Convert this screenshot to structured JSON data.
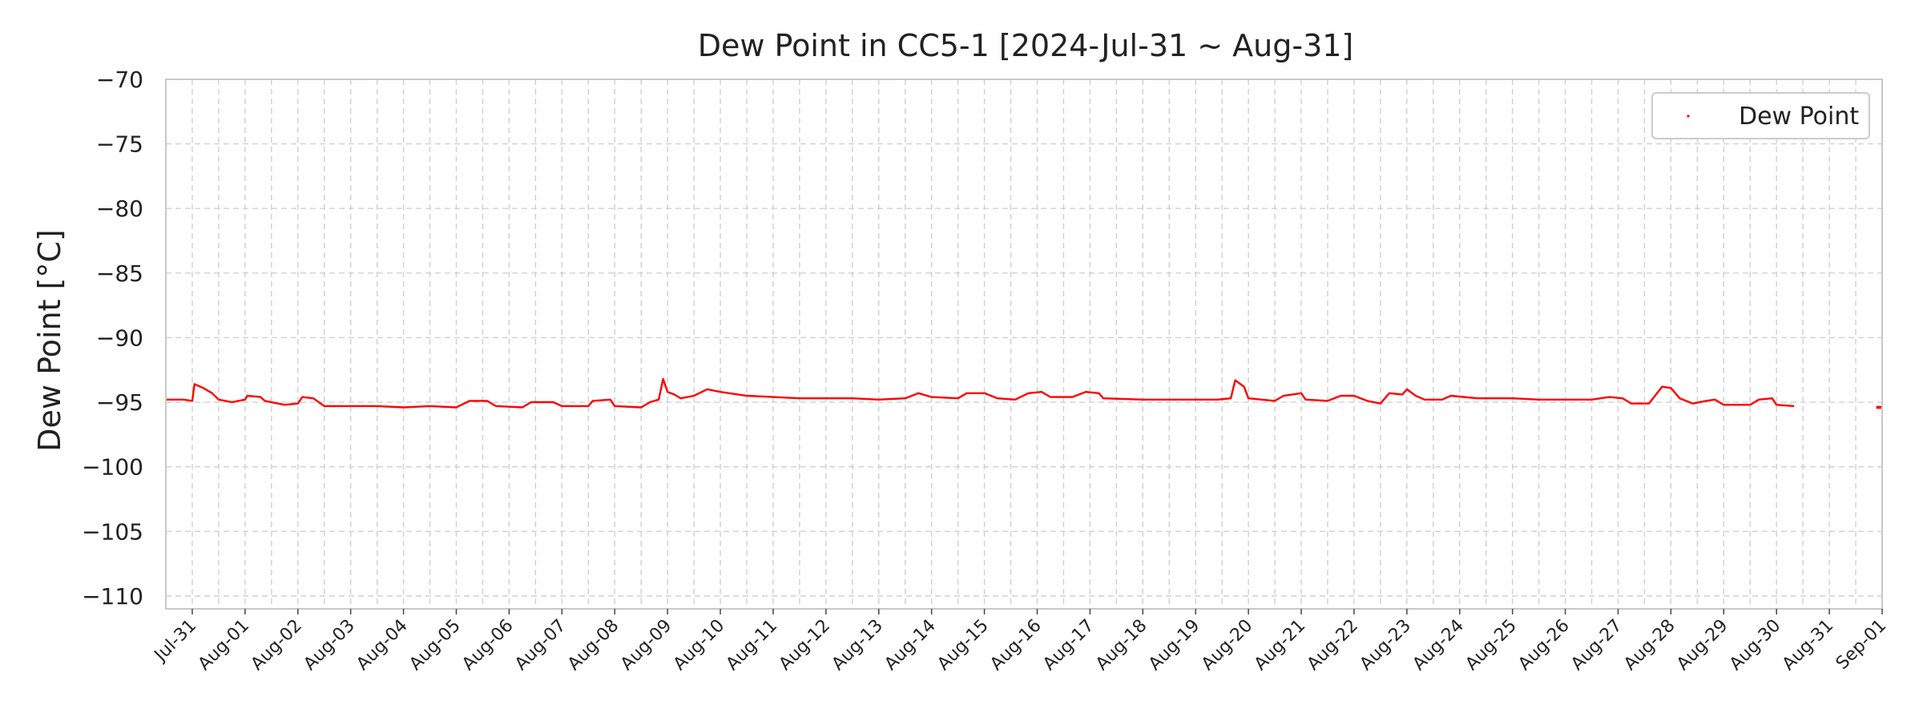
{
  "chart_data": {
    "type": "line",
    "title": "Dew Point in CC5-1 [2024-Jul-31 ~ Aug-31]",
    "xlabel": "",
    "ylabel": "Dew Point [°C]",
    "ylim": [
      -111,
      -70
    ],
    "yticks": [
      -70,
      -75,
      -80,
      -85,
      -90,
      -95,
      -100,
      -105,
      -110
    ],
    "xlim": [
      "2024-07-30T12:00",
      "2024-09-01T00:00"
    ],
    "xticks": [
      "2024-07-31",
      "2024-08-01",
      "2024-08-02",
      "2024-08-03",
      "2024-08-04",
      "2024-08-05",
      "2024-08-06",
      "2024-08-07",
      "2024-08-08",
      "2024-08-09",
      "2024-08-10",
      "2024-08-11",
      "2024-08-12",
      "2024-08-13",
      "2024-08-14",
      "2024-08-15",
      "2024-08-16",
      "2024-08-17",
      "2024-08-18",
      "2024-08-19",
      "2024-08-20",
      "2024-08-21",
      "2024-08-22",
      "2024-08-23",
      "2024-08-24",
      "2024-08-25",
      "2024-08-26",
      "2024-08-27",
      "2024-08-28",
      "2024-08-29",
      "2024-08-30",
      "2024-08-31",
      "2024-09-01"
    ],
    "xtick_labels": [
      "Jul-31",
      "Aug-01",
      "Aug-02",
      "Aug-03",
      "Aug-04",
      "Aug-05",
      "Aug-06",
      "Aug-07",
      "Aug-08",
      "Aug-09",
      "Aug-10",
      "Aug-11",
      "Aug-12",
      "Aug-13",
      "Aug-14",
      "Aug-15",
      "Aug-16",
      "Aug-17",
      "Aug-18",
      "Aug-19",
      "Aug-20",
      "Aug-21",
      "Aug-22",
      "Aug-23",
      "Aug-24",
      "Aug-25",
      "Aug-26",
      "Aug-27",
      "Aug-28",
      "Aug-29",
      "Aug-30",
      "Aug-31",
      "Sep-01"
    ],
    "grid": true,
    "legend": "top-right",
    "series": [
      {
        "name": "Dew Point",
        "color": "#ff0000",
        "points": [
          [
            "2024-07-30T12:00",
            -94.8
          ],
          [
            "2024-07-30T20:00",
            -94.8
          ],
          [
            "2024-07-31T00:00",
            -94.9
          ],
          [
            "2024-07-31T01:00",
            -93.6
          ],
          [
            "2024-07-31T05:00",
            -93.9
          ],
          [
            "2024-07-31T09:00",
            -94.3
          ],
          [
            "2024-07-31T12:00",
            -94.8
          ],
          [
            "2024-07-31T18:00",
            -95.0
          ],
          [
            "2024-08-01T00:00",
            -94.8
          ],
          [
            "2024-08-01T01:00",
            -94.5
          ],
          [
            "2024-08-01T07:00",
            -94.6
          ],
          [
            "2024-08-01T09:00",
            -94.9
          ],
          [
            "2024-08-01T18:00",
            -95.2
          ],
          [
            "2024-08-02T00:00",
            -95.1
          ],
          [
            "2024-08-02T02:00",
            -94.6
          ],
          [
            "2024-08-02T07:00",
            -94.7
          ],
          [
            "2024-08-02T12:00",
            -95.3
          ],
          [
            "2024-08-03T00:00",
            -95.3
          ],
          [
            "2024-08-03T12:00",
            -95.3
          ],
          [
            "2024-08-04T00:00",
            -95.4
          ],
          [
            "2024-08-04T12:00",
            -95.3
          ],
          [
            "2024-08-05T00:00",
            -95.4
          ],
          [
            "2024-08-05T06:00",
            -94.9
          ],
          [
            "2024-08-05T14:00",
            -94.9
          ],
          [
            "2024-08-05T18:00",
            -95.3
          ],
          [
            "2024-08-06T06:00",
            -95.4
          ],
          [
            "2024-08-06T10:00",
            -95.0
          ],
          [
            "2024-08-06T20:00",
            -95.0
          ],
          [
            "2024-08-07T00:00",
            -95.3
          ],
          [
            "2024-08-07T12:00",
            -95.3
          ],
          [
            "2024-08-07T14:00",
            -94.9
          ],
          [
            "2024-08-07T22:00",
            -94.8
          ],
          [
            "2024-08-08T00:00",
            -95.3
          ],
          [
            "2024-08-08T12:00",
            -95.4
          ],
          [
            "2024-08-08T16:00",
            -95.0
          ],
          [
            "2024-08-08T20:00",
            -94.8
          ],
          [
            "2024-08-08T22:00",
            -93.2
          ],
          [
            "2024-08-09T00:00",
            -94.2
          ],
          [
            "2024-08-09T03:00",
            -94.4
          ],
          [
            "2024-08-09T06:00",
            -94.7
          ],
          [
            "2024-08-09T12:00",
            -94.5
          ],
          [
            "2024-08-09T18:00",
            -94.0
          ],
          [
            "2024-08-10T00:00",
            -94.2
          ],
          [
            "2024-08-10T12:00",
            -94.5
          ],
          [
            "2024-08-11T00:00",
            -94.6
          ],
          [
            "2024-08-11T12:00",
            -94.7
          ],
          [
            "2024-08-12T00:00",
            -94.7
          ],
          [
            "2024-08-12T12:00",
            -94.7
          ],
          [
            "2024-08-13T00:00",
            -94.8
          ],
          [
            "2024-08-13T12:00",
            -94.7
          ],
          [
            "2024-08-13T18:00",
            -94.3
          ],
          [
            "2024-08-14T00:00",
            -94.6
          ],
          [
            "2024-08-14T12:00",
            -94.7
          ],
          [
            "2024-08-14T16:00",
            -94.3
          ],
          [
            "2024-08-15T00:00",
            -94.3
          ],
          [
            "2024-08-15T06:00",
            -94.7
          ],
          [
            "2024-08-15T14:00",
            -94.8
          ],
          [
            "2024-08-15T20:00",
            -94.3
          ],
          [
            "2024-08-16T02:00",
            -94.2
          ],
          [
            "2024-08-16T06:00",
            -94.6
          ],
          [
            "2024-08-16T16:00",
            -94.6
          ],
          [
            "2024-08-16T22:00",
            -94.2
          ],
          [
            "2024-08-17T04:00",
            -94.3
          ],
          [
            "2024-08-17T06:00",
            -94.7
          ],
          [
            "2024-08-18T00:00",
            -94.8
          ],
          [
            "2024-08-18T12:00",
            -94.8
          ],
          [
            "2024-08-19T00:00",
            -94.8
          ],
          [
            "2024-08-19T10:00",
            -94.8
          ],
          [
            "2024-08-19T16:00",
            -94.7
          ],
          [
            "2024-08-19T18:00",
            -93.3
          ],
          [
            "2024-08-19T22:00",
            -93.8
          ],
          [
            "2024-08-20T00:00",
            -94.7
          ],
          [
            "2024-08-20T12:00",
            -94.9
          ],
          [
            "2024-08-20T16:00",
            -94.5
          ],
          [
            "2024-08-21T00:00",
            -94.3
          ],
          [
            "2024-08-21T02:00",
            -94.8
          ],
          [
            "2024-08-21T12:00",
            -94.9
          ],
          [
            "2024-08-21T18:00",
            -94.5
          ],
          [
            "2024-08-22T00:00",
            -94.5
          ],
          [
            "2024-08-22T06:00",
            -94.9
          ],
          [
            "2024-08-22T12:00",
            -95.1
          ],
          [
            "2024-08-22T16:00",
            -94.3
          ],
          [
            "2024-08-22T22:00",
            -94.4
          ],
          [
            "2024-08-23T00:00",
            -94.0
          ],
          [
            "2024-08-23T04:00",
            -94.5
          ],
          [
            "2024-08-23T08:00",
            -94.8
          ],
          [
            "2024-08-23T16:00",
            -94.8
          ],
          [
            "2024-08-23T20:00",
            -94.5
          ],
          [
            "2024-08-24T08:00",
            -94.7
          ],
          [
            "2024-08-25T00:00",
            -94.7
          ],
          [
            "2024-08-25T12:00",
            -94.8
          ],
          [
            "2024-08-26T00:00",
            -94.8
          ],
          [
            "2024-08-26T12:00",
            -94.8
          ],
          [
            "2024-08-26T20:00",
            -94.6
          ],
          [
            "2024-08-27T02:00",
            -94.7
          ],
          [
            "2024-08-27T06:00",
            -95.1
          ],
          [
            "2024-08-27T14:00",
            -95.1
          ],
          [
            "2024-08-27T20:00",
            -93.8
          ],
          [
            "2024-08-28T00:00",
            -93.9
          ],
          [
            "2024-08-28T04:00",
            -94.7
          ],
          [
            "2024-08-28T10:00",
            -95.1
          ],
          [
            "2024-08-28T16:00",
            -94.9
          ],
          [
            "2024-08-28T20:00",
            -94.8
          ],
          [
            "2024-08-29T00:00",
            -95.2
          ],
          [
            "2024-08-29T12:00",
            -95.2
          ],
          [
            "2024-08-29T16:00",
            -94.8
          ],
          [
            "2024-08-29T22:00",
            -94.7
          ],
          [
            "2024-08-30T00:00",
            -95.2
          ],
          [
            "2024-08-30T08:00",
            -95.3
          ]
        ],
        "extra_points": [
          [
            "2024-08-31T22:00",
            -95.4
          ],
          [
            "2024-08-31T23:00",
            -95.4
          ]
        ]
      }
    ]
  }
}
